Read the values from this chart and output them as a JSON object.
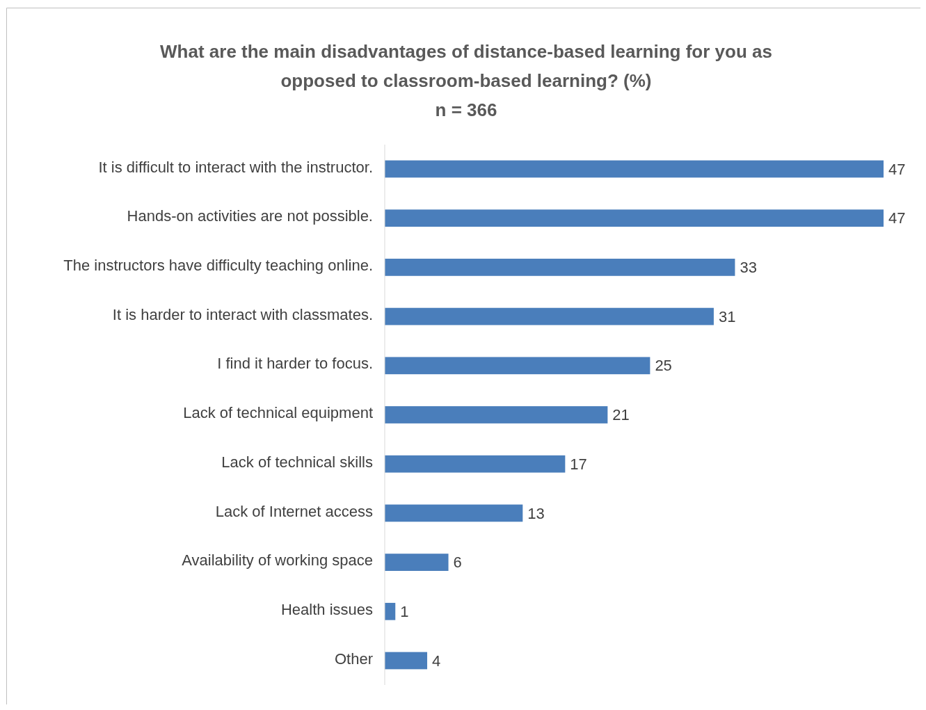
{
  "chart_data": {
    "type": "bar",
    "orientation": "horizontal",
    "title": "What are the main disadvantages of distance-based learning for you as opposed to classroom-based learning? (%)",
    "subtitle": "n = 366",
    "categories": [
      "It is difficult to interact with the instructor.",
      "Hands-on activities are not possible.",
      "The instructors have difficulty teaching online.",
      "It is harder to interact with classmates.",
      "I find it harder to focus.",
      "Lack of technical equipment",
      "Lack of technical skills",
      "Lack of Internet access",
      "Availability of working space",
      "Health issues",
      "Other"
    ],
    "values": [
      47,
      47,
      33,
      31,
      25,
      21,
      17,
      13,
      6,
      1,
      4
    ],
    "color": "#4a7ebb",
    "data_labels": true
  }
}
